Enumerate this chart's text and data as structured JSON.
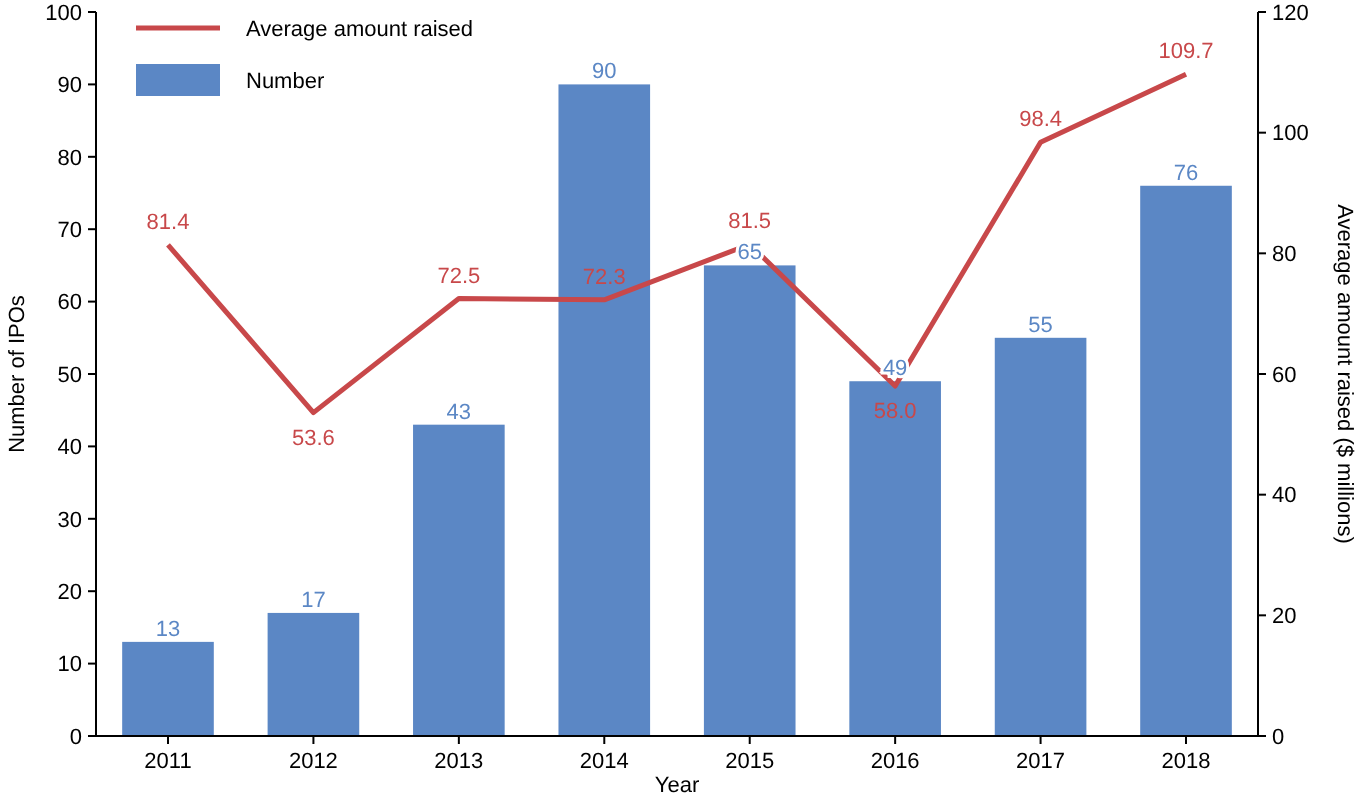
{
  "chart_data": {
    "type": "bar",
    "xlabel": "Year",
    "ylabel": "Number of IPOs",
    "y2label": "Average amount raised ($ millions)",
    "categories": [
      "2011",
      "2012",
      "2013",
      "2014",
      "2015",
      "2016",
      "2017",
      "2018"
    ],
    "series": [
      {
        "name": "Number",
        "color": "#5b87c5",
        "values": [
          13,
          17,
          43,
          90,
          65,
          49,
          55,
          76
        ],
        "value_labels": [
          "13",
          "17",
          "43",
          "90",
          "65",
          "49",
          "55",
          "76"
        ]
      },
      {
        "name": "Average amount raised",
        "type": "line",
        "axis": "y2",
        "color": "#c8484a",
        "values": [
          81.4,
          53.6,
          72.5,
          72.3,
          81.5,
          58.0,
          98.4,
          109.7
        ],
        "value_labels": [
          "81.4",
          "53.6",
          "72.5",
          "72.3",
          "81.5",
          "58.0",
          "98.4",
          "109.7"
        ]
      }
    ],
    "ylim": [
      0,
      100
    ],
    "yticks": [
      0,
      10,
      20,
      30,
      40,
      50,
      60,
      70,
      80,
      90,
      100
    ],
    "y2lim": [
      0,
      120
    ],
    "y2ticks": [
      0,
      20,
      40,
      60,
      80,
      100,
      120
    ],
    "legend": "top left",
    "grid": false,
    "marker": "none",
    "line_style": "solid"
  }
}
